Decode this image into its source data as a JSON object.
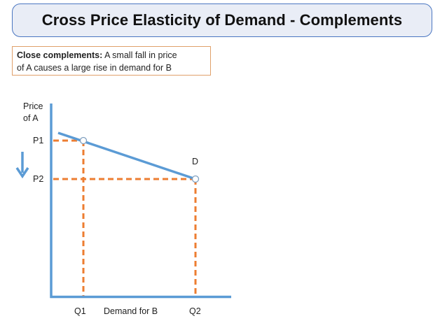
{
  "title": "Cross Price Elasticity of Demand - Complements",
  "note": {
    "bold_label": "Close complements:",
    "line1_rest": "A small fall in price",
    "line2": "of A causes a large rise in demand for B"
  },
  "diagram": {
    "y_axis_label_line1": "Price",
    "y_axis_label_line2": "of A",
    "x_axis_label": "Demand for B",
    "price_labels": [
      "P1",
      "P2"
    ],
    "quantity_labels": [
      "Q1",
      "Q2"
    ],
    "curve_label": "D",
    "colors": {
      "axis": "#5b9bd5",
      "curve": "#5b9bd5",
      "guides": "#ed7d31",
      "arrow": "#5b9bd5",
      "title_border": "#4a76c1",
      "title_fill": "#e9edf6",
      "note_border": "#e0a06a"
    }
  }
}
